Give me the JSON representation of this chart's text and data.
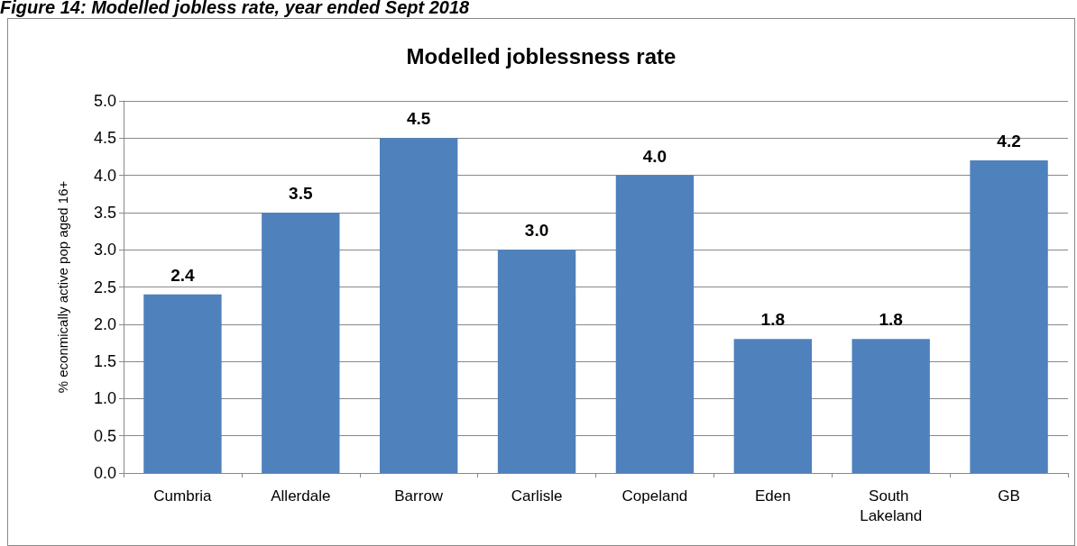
{
  "chart_data": {
    "type": "bar",
    "title": "Modelled joblessness rate",
    "ylabel": "% econmically active pop aged 16+",
    "annotations": [
      "Figure 14: Modelled jobless rate, year ended Sept 2018"
    ],
    "categories": [
      "Cumbria",
      "Allerdale",
      "Barrow",
      "Carlisle",
      "Copeland",
      "Eden",
      "South Lakeland",
      "GB"
    ],
    "values": [
      2.4,
      3.5,
      4.5,
      3.0,
      4.0,
      1.8,
      1.8,
      4.2
    ],
    "color": "#4f81bd",
    "value_labels": [
      "2.4",
      "3.5",
      "4.5",
      "3.0",
      "4.0",
      "1.8",
      "1.8",
      "4.2"
    ],
    "ylim": [
      0,
      5
    ],
    "yticks": [
      {
        "value": 0,
        "label": "0.0"
      },
      0.5,
      {
        "value": 1,
        "label": "1.0"
      },
      1.5,
      {
        "value": 2,
        "label": "2.0"
      },
      2.5,
      {
        "value": 3,
        "label": "3.0"
      },
      3.5,
      {
        "value": 4,
        "label": "4.0"
      },
      4.5,
      {
        "value": 5,
        "label": "5.0"
      }
    ],
    "grid": "y"
  }
}
